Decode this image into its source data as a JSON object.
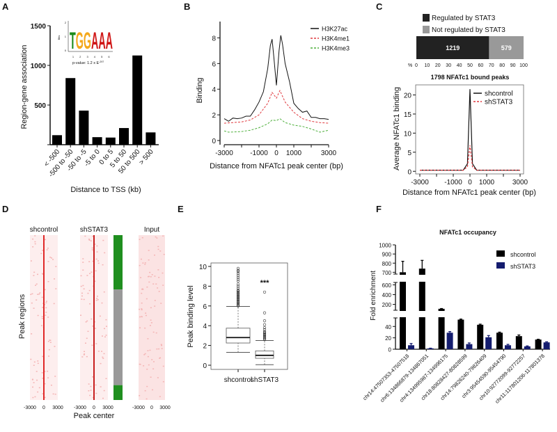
{
  "panel_labels": [
    "A",
    "B",
    "C",
    "D",
    "E",
    "F"
  ],
  "chart_data": [
    {
      "id": "A",
      "type": "bar",
      "categories": [
        "< -500",
        "-500 to -50",
        "-50 to -5",
        "-5 to 0",
        "0 to 5",
        "5 to 50",
        "50 to 500",
        "> 500"
      ],
      "values": [
        120,
        840,
        430,
        95,
        90,
        210,
        1125,
        155
      ],
      "xlabel": "Distance to TSS (kb)",
      "ylabel": "Region-gene association",
      "ylim": [
        0,
        1500
      ],
      "yticks": [
        500,
        1000,
        1500
      ],
      "inset": {
        "motif": "TGGAAA",
        "ylabel": "Bits",
        "yticks": [
          "0",
          "1",
          "2"
        ],
        "xticks": [
          "1",
          "2",
          "3",
          "4",
          "5",
          "6"
        ],
        "pvalue": "p-value: 1.2 x E",
        "pvalue_exp": "-297"
      }
    },
    {
      "id": "B",
      "type": "line",
      "xlabel": "Distance from NFATc1 peak center (bp)",
      "ylabel": "Binding",
      "xlim": [
        -3000,
        3000
      ],
      "ylim": [
        0,
        9
      ],
      "xticks": [
        "-3000",
        "-1000",
        "0",
        "1000",
        "3000"
      ],
      "xtickvals": [
        -3000,
        -1000,
        0,
        1000,
        3000
      ],
      "yticks": [
        0,
        2,
        4,
        6,
        8
      ],
      "legend_position": "top-right",
      "series": [
        {
          "name": "H3K27ac",
          "color": "#111111",
          "dash": false,
          "x": [
            -3000,
            -2750,
            -2500,
            -2250,
            -2000,
            -1750,
            -1500,
            -1250,
            -1000,
            -750,
            -500,
            -350,
            -250,
            -150,
            0,
            150,
            250,
            350,
            500,
            750,
            1000,
            1250,
            1500,
            1750,
            2000,
            2250,
            2500,
            2750,
            3000
          ],
          "y": [
            1.7,
            1.5,
            1.75,
            1.7,
            1.75,
            1.9,
            1.9,
            2.4,
            3.0,
            3.8,
            5.6,
            7.4,
            7.9,
            6.5,
            4.3,
            7.0,
            8.2,
            7.5,
            6.0,
            4.6,
            2.9,
            2.5,
            2.2,
            2.3,
            1.8,
            1.8,
            1.7,
            1.7,
            1.65
          ]
        },
        {
          "name": "H3K4me1",
          "color": "#e0393e",
          "dash": true,
          "x": [
            -3000,
            -2500,
            -2000,
            -1500,
            -1000,
            -500,
            -250,
            0,
            200,
            500,
            1000,
            1500,
            2000,
            2500,
            3000
          ],
          "y": [
            1.35,
            1.4,
            1.45,
            1.6,
            2.0,
            2.9,
            3.75,
            3.3,
            3.9,
            3.0,
            2.2,
            1.7,
            1.5,
            1.4,
            1.35
          ]
        },
        {
          "name": "H3K4me3",
          "color": "#4caf3a",
          "dash": true,
          "x": [
            -3000,
            -2750,
            -2000,
            -1500,
            -1000,
            -500,
            -250,
            0,
            200,
            500,
            1000,
            1500,
            2000,
            2500,
            3000
          ],
          "y": [
            0.75,
            0.65,
            0.7,
            0.8,
            1.0,
            1.3,
            1.6,
            1.55,
            1.7,
            1.4,
            1.2,
            1.1,
            0.9,
            0.65,
            0.8
          ]
        }
      ]
    },
    {
      "id": "C1",
      "type": "bar",
      "orientation": "horizontal-stacked",
      "series": [
        {
          "name": "Regulated by STAT3",
          "value": 1219,
          "label": "1219",
          "color": "#222222"
        },
        {
          "name": "Not regulated by STAT3",
          "value": 579,
          "label": "579",
          "color": "#999999"
        }
      ],
      "xlabel_prefix": "%",
      "xticks": [
        0,
        10,
        20,
        30,
        40,
        50,
        60,
        70,
        80,
        90,
        100
      ],
      "xlim": [
        0,
        100
      ]
    },
    {
      "id": "C2",
      "type": "line",
      "title": "1798 NFATc1 bound peaks",
      "xlabel": "Distance from NFATc1 peak center (bp)",
      "ylabel": "Average NFATc1 binding",
      "xlim": [
        -3000,
        3000
      ],
      "ylim": [
        -0.5,
        23
      ],
      "xticks": [
        "-3000",
        "-1000",
        "0",
        "1000",
        "3000"
      ],
      "xtickvals": [
        -3000,
        -1000,
        0,
        1000,
        3000
      ],
      "yticks": [
        0,
        5,
        10,
        15,
        20
      ],
      "legend_position": "top-right",
      "series": [
        {
          "name": "shcontrol",
          "color": "#111111",
          "dash": false,
          "x": [
            -3000,
            -400,
            -150,
            0,
            150,
            400,
            3000
          ],
          "y": [
            0.3,
            0.3,
            2.0,
            21.5,
            2.0,
            0.3,
            0.3
          ]
        },
        {
          "name": "shSTAT3",
          "color": "#e0393e",
          "dash": true,
          "x": [
            -3000,
            -400,
            -150,
            0,
            150,
            400,
            3000
          ],
          "y": [
            0.3,
            0.3,
            1.2,
            6.8,
            1.2,
            0.3,
            0.3
          ]
        }
      ]
    },
    {
      "id": "D",
      "type": "heatmap",
      "columns": [
        "shcontrol",
        "shSTAT3",
        "Input"
      ],
      "xticks": [
        "-3000",
        "0",
        "3000"
      ],
      "xlabel": "Peak center",
      "ylabel": "Peak regions",
      "annotation_bar": [
        {
          "category": "regulated",
          "color": "#1f8f1f",
          "fraction": 0.33
        },
        {
          "category": "not regulated",
          "color": "#999999",
          "fraction": 0.58
        },
        {
          "category": "regulated",
          "color": "#1f8f1f",
          "fraction": 0.09
        }
      ]
    },
    {
      "id": "E",
      "type": "box",
      "ylabel": "Peak binding level",
      "ylim": [
        0,
        10
      ],
      "yticks": [
        0,
        2,
        4,
        6,
        8,
        10
      ],
      "categories": [
        "shcontrol",
        "shSTAT3"
      ],
      "boxes": [
        {
          "name": "shcontrol",
          "whisker_low": 1.3,
          "q1": 2.25,
          "median": 2.8,
          "q3": 3.75,
          "whisker_high": 5.95,
          "outliers": [
            6.0,
            6.1,
            6.2,
            6.3,
            6.4,
            6.5,
            6.6,
            6.7,
            6.8,
            6.9,
            7.0,
            7.1,
            7.2,
            7.3,
            7.4,
            7.5,
            7.6,
            7.8,
            8.0,
            8.2,
            8.5,
            8.7,
            8.9,
            9.1,
            9.3,
            9.5,
            9.6,
            9.8
          ]
        },
        {
          "name": "shSTAT3",
          "whisker_low": 0.05,
          "q1": 0.7,
          "median": 1.0,
          "q3": 1.45,
          "whisker_high": 2.5,
          "outliers": [
            2.6,
            2.7,
            2.8,
            2.9,
            3.0,
            3.1,
            3.2,
            3.3,
            3.4,
            3.6,
            3.8,
            4.1,
            4.5,
            5.3,
            7.4
          ]
        }
      ],
      "annotation": "***"
    },
    {
      "id": "F",
      "type": "bar",
      "title": "NFATc1 occupancy",
      "ylabel": "Fold enrichment",
      "broken_axis": true,
      "yticks": [
        0,
        20,
        40,
        200,
        400,
        600,
        700,
        800,
        900,
        1000
      ],
      "categories": [
        "chr14:47507353-47507518",
        "chr6:134866879-134867051",
        "chr4:134995987-134996175",
        "chr18:80828427-80828599",
        "chr14:79826240-79826409",
        "chr3:95454590-95454790",
        "chr10:92772099-92772257",
        "chr11:117801206-117801378"
      ],
      "legend_position": "top-right",
      "series": [
        {
          "name": "shcontrol",
          "color": "#000000",
          "values": [
            700,
            740,
            110,
            52,
            43,
            29,
            23,
            17
          ],
          "errors": [
            120,
            90,
            5,
            1,
            1,
            1,
            2,
            0.5
          ]
        },
        {
          "name": "shSTAT3",
          "color": "#141c6e",
          "values": [
            7,
            1.5,
            29,
            9,
            21,
            7,
            5,
            12
          ],
          "errors": [
            3,
            0.3,
            2,
            2,
            3,
            1.5,
            0.8,
            1
          ]
        }
      ]
    }
  ]
}
